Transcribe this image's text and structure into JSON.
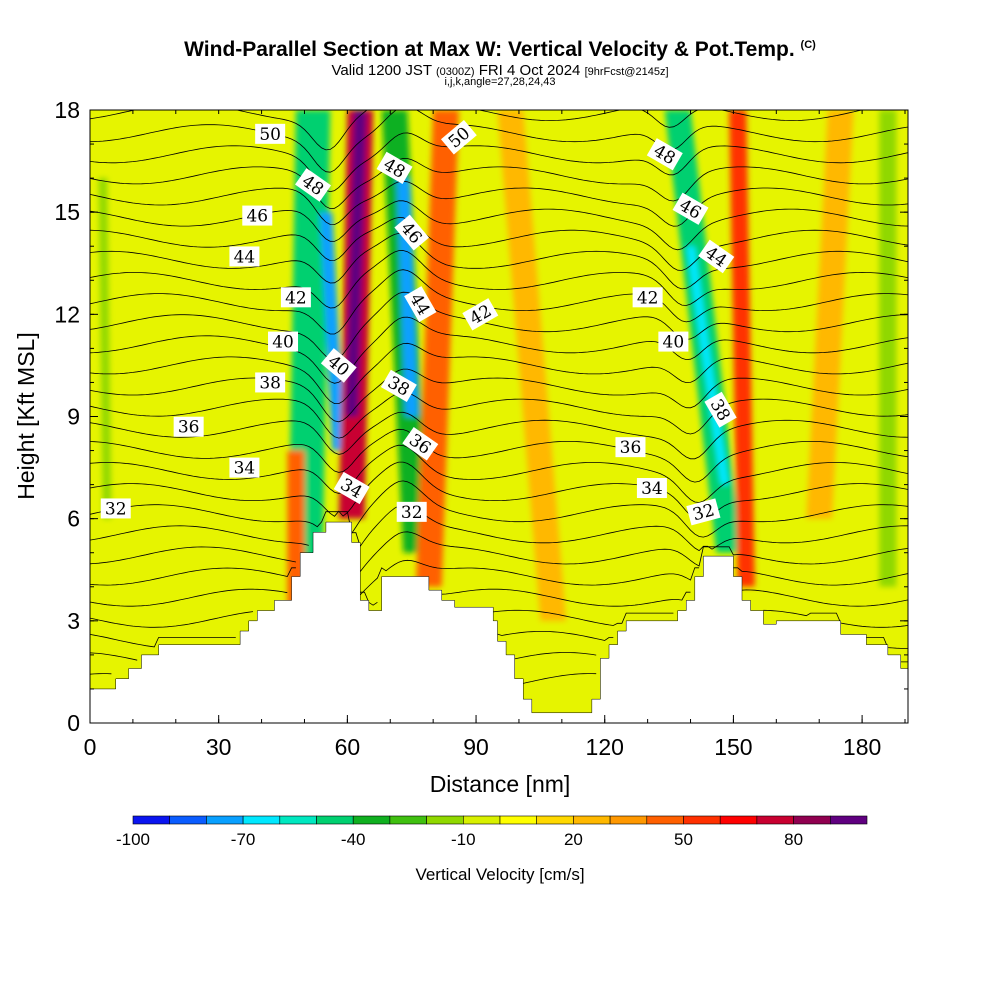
{
  "title": "Wind-Parallel Section at Max W: Vertical Velocity & Pot.Temp.",
  "copyright": "(C)",
  "subtitle_a": "Valid 1200 JST",
  "subtitle_b": "(0300Z)",
  "subtitle_c": "FRI 4 Oct 2024",
  "subtitle_d": "[9hrFcst@2145z]",
  "subtitle2": "i,j,k,angle=27,28,24,43",
  "chart_data": {
    "type": "heatmap",
    "xlabel": "Distance [nm]",
    "ylabel": "Height [Kft MSL]",
    "xlim": [
      0,
      190.7
    ],
    "ylim": [
      0,
      18
    ],
    "xticks": [
      0,
      30,
      60,
      90,
      120,
      150,
      180
    ],
    "yticks": [
      0,
      3,
      6,
      9,
      12,
      15,
      18
    ],
    "colorbar": {
      "label": "Vertical Velocity [cm/s]",
      "range": [
        -100,
        100
      ],
      "step": 10,
      "tick_labels": [
        "-100",
        "-70",
        "-40",
        "-10",
        "20",
        "50",
        "80"
      ],
      "colors": [
        "#0a14f0",
        "#0a5cff",
        "#08a0ff",
        "#00e8ff",
        "#00e8c0",
        "#00d070",
        "#10b020",
        "#40c010",
        "#90d800",
        "#d8f000",
        "#ffff00",
        "#ffd800",
        "#ffb800",
        "#ff9800",
        "#ff6000",
        "#ff3000",
        "#ff0000",
        "#c80030",
        "#900050",
        "#600080"
      ]
    },
    "terrain": [
      [
        0,
        1.0
      ],
      [
        6,
        1.0
      ],
      [
        6,
        1.3
      ],
      [
        9,
        1.3
      ],
      [
        9,
        1.6
      ],
      [
        12,
        1.6
      ],
      [
        12,
        2.0
      ],
      [
        16,
        2.0
      ],
      [
        16,
        2.3
      ],
      [
        35,
        2.3
      ],
      [
        35,
        2.7
      ],
      [
        37,
        2.7
      ],
      [
        37,
        3.0
      ],
      [
        39,
        3.0
      ],
      [
        39,
        3.3
      ],
      [
        43,
        3.3
      ],
      [
        43,
        3.6
      ],
      [
        47,
        3.6
      ],
      [
        47,
        4.3
      ],
      [
        49,
        4.3
      ],
      [
        49,
        5.0
      ],
      [
        52,
        5.0
      ],
      [
        52,
        5.6
      ],
      [
        55,
        5.6
      ],
      [
        55,
        5.9
      ],
      [
        61,
        5.9
      ],
      [
        61,
        5.3
      ],
      [
        63,
        5.3
      ],
      [
        63,
        3.6
      ],
      [
        65,
        3.6
      ],
      [
        65,
        3.3
      ],
      [
        68,
        3.3
      ],
      [
        68,
        4.3
      ],
      [
        79,
        4.3
      ],
      [
        79,
        3.9
      ],
      [
        82,
        3.9
      ],
      [
        82,
        3.6
      ],
      [
        85,
        3.6
      ],
      [
        85,
        3.4
      ],
      [
        94,
        3.4
      ],
      [
        94,
        3.0
      ],
      [
        95,
        3.0
      ],
      [
        95,
        2.4
      ],
      [
        97,
        2.4
      ],
      [
        97,
        2.0
      ],
      [
        99,
        2.0
      ],
      [
        99,
        1.3
      ],
      [
        101,
        1.3
      ],
      [
        101,
        0.7
      ],
      [
        103,
        0.7
      ],
      [
        103,
        0.3
      ],
      [
        117,
        0.3
      ],
      [
        117,
        0.7
      ],
      [
        119,
        0.7
      ],
      [
        119,
        1.9
      ],
      [
        121,
        1.9
      ],
      [
        121,
        2.3
      ],
      [
        123,
        2.3
      ],
      [
        123,
        2.7
      ],
      [
        125,
        2.7
      ],
      [
        125,
        3.0
      ],
      [
        137,
        3.0
      ],
      [
        137,
        3.3
      ],
      [
        139,
        3.3
      ],
      [
        139,
        3.6
      ],
      [
        141,
        3.6
      ],
      [
        141,
        4.3
      ],
      [
        143,
        4.3
      ],
      [
        143,
        4.9
      ],
      [
        150,
        4.9
      ],
      [
        150,
        4.3
      ],
      [
        152,
        4.3
      ],
      [
        152,
        3.6
      ],
      [
        154,
        3.6
      ],
      [
        154,
        3.3
      ],
      [
        157,
        3.3
      ],
      [
        157,
        2.9
      ],
      [
        160,
        2.9
      ],
      [
        160,
        3.0
      ],
      [
        175,
        3.0
      ],
      [
        175,
        2.6
      ],
      [
        181,
        2.6
      ],
      [
        181,
        2.3
      ],
      [
        186,
        2.3
      ],
      [
        186,
        2.0
      ],
      [
        189,
        2.0
      ],
      [
        189,
        1.6
      ],
      [
        190.7,
        1.6
      ]
    ],
    "features": [
      {
        "w": -50,
        "bottom": [
          50,
          3
        ],
        "top": [
          52,
          18
        ],
        "halfwidth": 4
      },
      {
        "w": -80,
        "bottom": [
          58,
          8
        ],
        "top": [
          55,
          15
        ],
        "halfwidth": 1.5
      },
      {
        "w": 40,
        "bottom": [
          48,
          3
        ],
        "top": [
          48,
          8
        ],
        "halfwidth": 2
      },
      {
        "w": 70,
        "bottom": [
          61,
          6
        ],
        "top": [
          63,
          18
        ],
        "halfwidth": 3
      },
      {
        "w": 95,
        "bottom": [
          61,
          9
        ],
        "top": [
          63,
          18
        ],
        "halfwidth": 1.5
      },
      {
        "w": -40,
        "bottom": [
          76,
          5
        ],
        "top": [
          71,
          18
        ],
        "halfwidth": 3
      },
      {
        "w": -75,
        "bottom": [
          75,
          9
        ],
        "top": [
          73,
          16
        ],
        "halfwidth": 1.5
      },
      {
        "w": 40,
        "bottom": [
          79,
          4
        ],
        "top": [
          83,
          18
        ],
        "halfwidth": 3
      },
      {
        "w": 20,
        "bottom": [
          108,
          3
        ],
        "top": [
          98,
          18
        ],
        "halfwidth": 3
      },
      {
        "w": -45,
        "bottom": [
          149,
          5
        ],
        "top": [
          137,
          18
        ],
        "halfwidth": 3
      },
      {
        "w": -70,
        "bottom": [
          148,
          7
        ],
        "top": [
          140,
          14
        ],
        "halfwidth": 1
      },
      {
        "w": 50,
        "bottom": [
          153,
          4
        ],
        "top": [
          151,
          18
        ],
        "halfwidth": 2
      },
      {
        "w": 20,
        "bottom": [
          170,
          6
        ],
        "top": [
          175,
          18
        ],
        "halfwidth": 3
      },
      {
        "w": -20,
        "bottom": [
          4,
          6
        ],
        "top": [
          3,
          16
        ],
        "halfwidth": 1
      },
      {
        "w": -20,
        "bottom": [
          186,
          4
        ],
        "top": [
          186,
          18
        ],
        "halfwidth": 2
      }
    ],
    "contour_labels": [
      {
        "v": "50",
        "x": 42,
        "y": 17.3,
        "r": 0
      },
      {
        "v": "48",
        "x": 52,
        "y": 15.8,
        "r": 35
      },
      {
        "v": "46",
        "x": 39,
        "y": 14.9,
        "r": 0
      },
      {
        "v": "44",
        "x": 36,
        "y": 13.7,
        "r": 0
      },
      {
        "v": "42",
        "x": 48,
        "y": 12.5,
        "r": 0
      },
      {
        "v": "40",
        "x": 45,
        "y": 11.2,
        "r": 0
      },
      {
        "v": "38",
        "x": 42,
        "y": 10.0,
        "r": 0
      },
      {
        "v": "36",
        "x": 23,
        "y": 8.7,
        "r": 0
      },
      {
        "v": "34",
        "x": 36,
        "y": 7.5,
        "r": 0
      },
      {
        "v": "32",
        "x": 6,
        "y": 6.3,
        "r": 0
      },
      {
        "v": "48",
        "x": 71,
        "y": 16.3,
        "r": 30
      },
      {
        "v": "50",
        "x": 86,
        "y": 17.2,
        "r": -40
      },
      {
        "v": "46",
        "x": 75,
        "y": 14.4,
        "r": 50
      },
      {
        "v": "44",
        "x": 77,
        "y": 12.3,
        "r": 60
      },
      {
        "v": "42",
        "x": 91,
        "y": 12.0,
        "r": -30
      },
      {
        "v": "40",
        "x": 58,
        "y": 10.5,
        "r": 40
      },
      {
        "v": "38",
        "x": 72,
        "y": 9.9,
        "r": 30
      },
      {
        "v": "36",
        "x": 77,
        "y": 8.2,
        "r": 35
      },
      {
        "v": "34",
        "x": 61,
        "y": 6.9,
        "r": 30
      },
      {
        "v": "32",
        "x": 75,
        "y": 6.2,
        "r": 0
      },
      {
        "v": "48",
        "x": 134,
        "y": 16.7,
        "r": 30
      },
      {
        "v": "46",
        "x": 140,
        "y": 15.1,
        "r": 30
      },
      {
        "v": "44",
        "x": 146,
        "y": 13.7,
        "r": 35
      },
      {
        "v": "42",
        "x": 130,
        "y": 12.5,
        "r": 0
      },
      {
        "v": "40",
        "x": 136,
        "y": 11.2,
        "r": 0
      },
      {
        "v": "38",
        "x": 147,
        "y": 9.2,
        "r": 60
      },
      {
        "v": "36",
        "x": 126,
        "y": 8.1,
        "r": 0
      },
      {
        "v": "34",
        "x": 131,
        "y": 6.9,
        "r": 0
      },
      {
        "v": "32",
        "x": 143,
        "y": 6.2,
        "r": -15
      }
    ]
  }
}
